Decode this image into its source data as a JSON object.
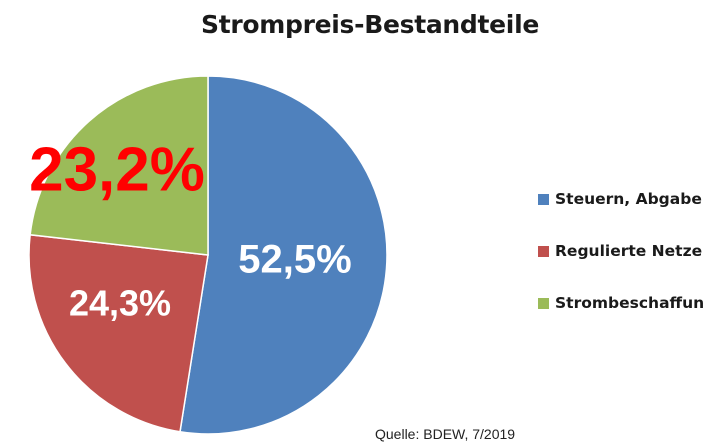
{
  "chart_data": {
    "type": "pie",
    "title": "Strompreis-Bestandteile",
    "slices": [
      {
        "name": "Steuern, Abgabe",
        "value": 52.5,
        "label": "52,5%",
        "color": "#4f81bd",
        "label_color": "#ffffff"
      },
      {
        "name": "Regulierte Netze",
        "value": 24.3,
        "label": "24,3%",
        "color": "#c0504d",
        "label_color": "#ffffff"
      },
      {
        "name": "Strombeschaffun",
        "value": 23.2,
        "label": "23,2%",
        "color": "#9bbb59",
        "label_color": "#ff0000"
      }
    ],
    "legend_position": "right"
  },
  "source": "Quelle: BDEW, 7/2019"
}
